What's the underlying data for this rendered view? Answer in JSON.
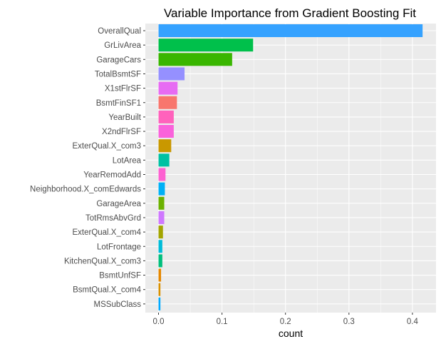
{
  "chart_data": {
    "type": "bar",
    "orientation": "horizontal",
    "title": "Variable Importance from Gradient Boosting Fit",
    "xlabel": "count",
    "ylabel": "",
    "xlim": [
      0,
      0.42
    ],
    "x_ticks": [
      0.0,
      0.1,
      0.2,
      0.3,
      0.4
    ],
    "x_tick_labels": [
      "0.0",
      "0.1",
      "0.2",
      "0.3",
      "0.4"
    ],
    "grid": true,
    "legend": "none",
    "panel_background": "#ebebeb",
    "grid_color": "#ffffff",
    "bars": [
      {
        "category": "OverallQual",
        "value": 0.416,
        "color": "#35a2ff"
      },
      {
        "category": "GrLivArea",
        "value": 0.149,
        "color": "#00c04b"
      },
      {
        "category": "GarageCars",
        "value": 0.116,
        "color": "#39b600"
      },
      {
        "category": "TotalBsmtSF",
        "value": 0.041,
        "color": "#9590ff"
      },
      {
        "category": "X1stFlrSF",
        "value": 0.03,
        "color": "#e76bf3"
      },
      {
        "category": "BsmtFinSF1",
        "value": 0.029,
        "color": "#f8766d"
      },
      {
        "category": "YearBuilt",
        "value": 0.024,
        "color": "#ff62bc"
      },
      {
        "category": "X2ndFlrSF",
        "value": 0.024,
        "color": "#fa62db"
      },
      {
        "category": "ExterQual.X_com3",
        "value": 0.02,
        "color": "#c99800"
      },
      {
        "category": "LotArea",
        "value": 0.017,
        "color": "#00c1a3"
      },
      {
        "category": "YearRemodAdd",
        "value": 0.011,
        "color": "#fd61d1"
      },
      {
        "category": "Neighborhood.X_comEdwards",
        "value": 0.01,
        "color": "#00b0f6"
      },
      {
        "category": "GarageArea",
        "value": 0.009,
        "color": "#6bb100"
      },
      {
        "category": "TotRmsAbvGrd",
        "value": 0.009,
        "color": "#cf78ff"
      },
      {
        "category": "ExterQual.X_com4",
        "value": 0.007,
        "color": "#a3a500"
      },
      {
        "category": "LotFrontage",
        "value": 0.006,
        "color": "#00bcd8"
      },
      {
        "category": "KitchenQual.X_com3",
        "value": 0.006,
        "color": "#00bf7d"
      },
      {
        "category": "BsmtUnfSF",
        "value": 0.004,
        "color": "#e58700"
      },
      {
        "category": "BsmtQual.X_com4",
        "value": 0.003,
        "color": "#d89000"
      },
      {
        "category": "MSSubClass",
        "value": 0.003,
        "color": "#00a9ff"
      }
    ]
  }
}
